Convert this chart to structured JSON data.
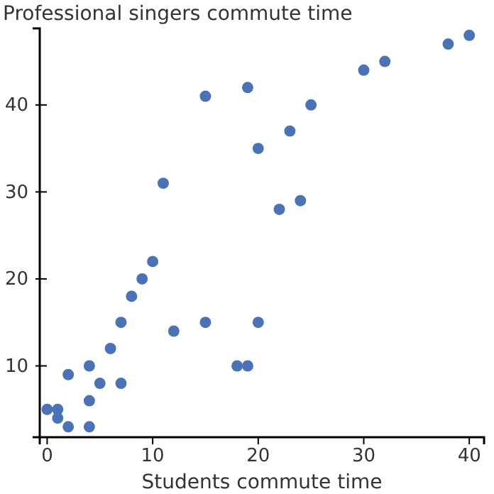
{
  "chart_data": {
    "type": "scatter",
    "ylabel": "Professional singers commute time",
    "xlabel": "Students commute time",
    "x": [
      0,
      1,
      1,
      2,
      2,
      4,
      4,
      4,
      5,
      6,
      7,
      7,
      8,
      9,
      10,
      12,
      15,
      18,
      19,
      20,
      11,
      15,
      19,
      20,
      22,
      23,
      24,
      25,
      30,
      32,
      38,
      40
    ],
    "series": [
      {
        "color": "#4a72b5",
        "values": [
          5,
          5,
          4,
          3,
          9,
          10,
          6,
          3,
          8,
          12,
          15,
          8,
          18,
          20,
          22,
          14,
          15,
          10,
          10,
          15,
          31,
          41,
          42,
          35,
          28,
          37,
          29,
          40,
          44,
          45,
          47,
          48
        ]
      }
    ],
    "xlim": [
      -0.7,
      41.4
    ],
    "ylim": [
      1.8,
      48.8
    ],
    "xticks": [
      0,
      10,
      20,
      30,
      40
    ],
    "yticks": [
      10,
      20,
      30,
      40
    ],
    "marker": "circle",
    "grid": false
  }
}
